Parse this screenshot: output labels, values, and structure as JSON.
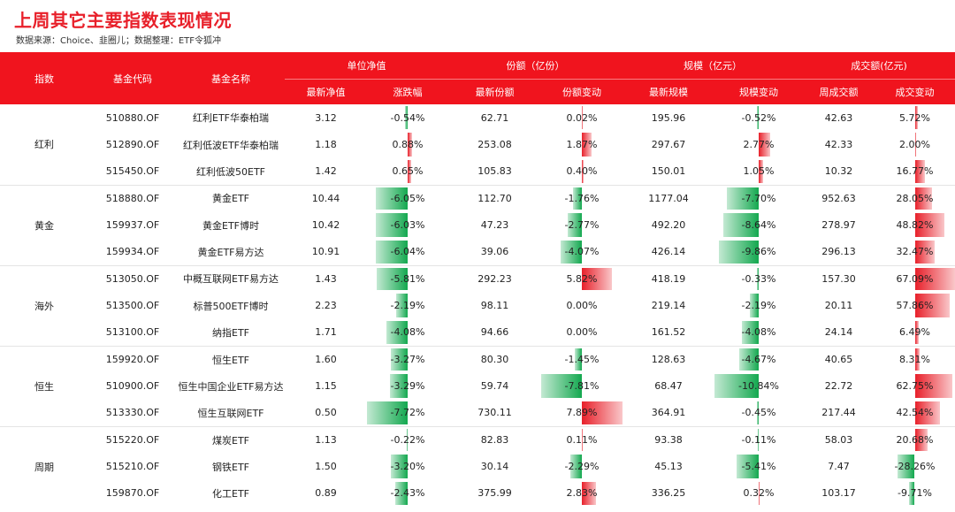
{
  "title": "上周其它主要指数表现情况",
  "source": "数据来源：Choice、韭圈儿；数据整理：ETF令狐冲",
  "header": {
    "col_index": "指数",
    "col_code": "基金代码",
    "col_name": "基金名称",
    "groups": [
      "单位净值",
      "份额（亿份）",
      "规模（亿元）",
      "成交额(亿元)"
    ],
    "subs": [
      "最新净值",
      "涨跌幅",
      "最新份额",
      "份额变动",
      "最新规模",
      "规模变动",
      "周成交额",
      "成交变动"
    ]
  },
  "colors": {
    "red": "#f0141e",
    "pos": "#e8202a",
    "neg": "#13a84f"
  },
  "groups": [
    {
      "name": "红利",
      "rows": [
        {
          "code": "510880.OF",
          "name": "红利ETF华泰柏瑞",
          "nav": "3.12",
          "chg": "-0.54%",
          "share": "62.71",
          "share_chg": "0.02%",
          "scale": "195.96",
          "scale_chg": "-0.52%",
          "turn": "42.63",
          "turn_chg": "5.72%"
        },
        {
          "code": "512890.OF",
          "name": "红利低波ETF华泰柏瑞",
          "nav": "1.18",
          "chg": "0.88%",
          "share": "253.08",
          "share_chg": "1.87%",
          "scale": "297.67",
          "scale_chg": "2.77%",
          "turn": "42.33",
          "turn_chg": "2.00%"
        },
        {
          "code": "515450.OF",
          "name": "红利低波50ETF",
          "nav": "1.42",
          "chg": "0.65%",
          "share": "105.83",
          "share_chg": "0.40%",
          "scale": "150.01",
          "scale_chg": "1.05%",
          "turn": "10.32",
          "turn_chg": "16.77%"
        }
      ]
    },
    {
      "name": "黄金",
      "rows": [
        {
          "code": "518880.OF",
          "name": "黄金ETF",
          "nav": "10.44",
          "chg": "-6.05%",
          "share": "112.70",
          "share_chg": "-1.76%",
          "scale": "1177.04",
          "scale_chg": "-7.70%",
          "turn": "952.63",
          "turn_chg": "28.05%"
        },
        {
          "code": "159937.OF",
          "name": "黄金ETF博时",
          "nav": "10.42",
          "chg": "-6.03%",
          "share": "47.23",
          "share_chg": "-2.77%",
          "scale": "492.20",
          "scale_chg": "-8.64%",
          "turn": "278.97",
          "turn_chg": "48.82%"
        },
        {
          "code": "159934.OF",
          "name": "黄金ETF易方达",
          "nav": "10.91",
          "chg": "-6.04%",
          "share": "39.06",
          "share_chg": "-4.07%",
          "scale": "426.14",
          "scale_chg": "-9.86%",
          "turn": "296.13",
          "turn_chg": "32.47%"
        }
      ]
    },
    {
      "name": "海外",
      "rows": [
        {
          "code": "513050.OF",
          "name": "中概互联网ETF易方达",
          "nav": "1.43",
          "chg": "-5.81%",
          "share": "292.23",
          "share_chg": "5.82%",
          "scale": "418.19",
          "scale_chg": "-0.33%",
          "turn": "157.30",
          "turn_chg": "67.09%"
        },
        {
          "code": "513500.OF",
          "name": "标普500ETF博时",
          "nav": "2.23",
          "chg": "-2.19%",
          "share": "98.11",
          "share_chg": "0.00%",
          "scale": "219.14",
          "scale_chg": "-2.19%",
          "turn": "20.11",
          "turn_chg": "57.86%"
        },
        {
          "code": "513100.OF",
          "name": "纳指ETF",
          "nav": "1.71",
          "chg": "-4.08%",
          "share": "94.66",
          "share_chg": "0.00%",
          "scale": "161.52",
          "scale_chg": "-4.08%",
          "turn": "24.14",
          "turn_chg": "6.49%"
        }
      ]
    },
    {
      "name": "恒生",
      "rows": [
        {
          "code": "159920.OF",
          "name": "恒生ETF",
          "nav": "1.60",
          "chg": "-3.27%",
          "share": "80.30",
          "share_chg": "-1.45%",
          "scale": "128.63",
          "scale_chg": "-4.67%",
          "turn": "40.65",
          "turn_chg": "8.31%"
        },
        {
          "code": "510900.OF",
          "name": "恒生中国企业ETF易方达",
          "nav": "1.15",
          "chg": "-3.29%",
          "share": "59.74",
          "share_chg": "-7.81%",
          "scale": "68.47",
          "scale_chg": "-10.84%",
          "turn": "22.72",
          "turn_chg": "62.75%"
        },
        {
          "code": "513330.OF",
          "name": "恒生互联网ETF",
          "nav": "0.50",
          "chg": "-7.72%",
          "share": "730.11",
          "share_chg": "7.89%",
          "scale": "364.91",
          "scale_chg": "-0.45%",
          "turn": "217.44",
          "turn_chg": "42.54%"
        }
      ]
    },
    {
      "name": "周期",
      "rows": [
        {
          "code": "515220.OF",
          "name": "煤炭ETF",
          "nav": "1.13",
          "chg": "-0.22%",
          "share": "82.83",
          "share_chg": "0.11%",
          "scale": "93.38",
          "scale_chg": "-0.11%",
          "turn": "58.03",
          "turn_chg": "20.68%"
        },
        {
          "code": "515210.OF",
          "name": "钢铁ETF",
          "nav": "1.50",
          "chg": "-3.20%",
          "share": "30.14",
          "share_chg": "-2.29%",
          "scale": "45.13",
          "scale_chg": "-5.41%",
          "turn": "7.47",
          "turn_chg": "-28.26%"
        },
        {
          "code": "159870.OF",
          "name": "化工ETF",
          "nav": "0.89",
          "chg": "-2.43%",
          "share": "375.99",
          "share_chg": "2.83%",
          "scale": "336.25",
          "scale_chg": "0.32%",
          "turn": "103.17",
          "turn_chg": "-9.71%"
        }
      ]
    }
  ]
}
